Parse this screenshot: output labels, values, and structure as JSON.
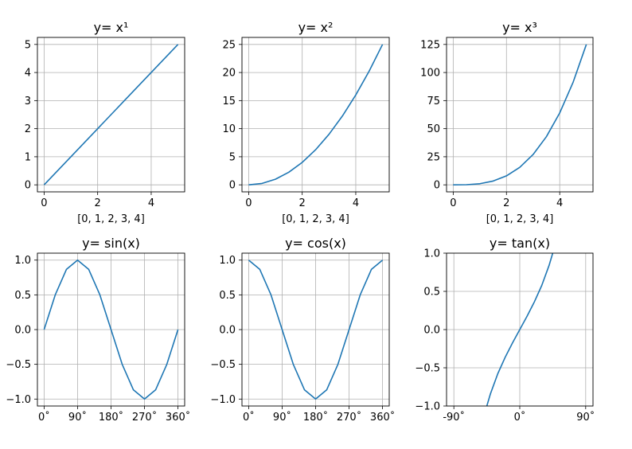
{
  "line_color": "#1f77b4",
  "grid_color": "#b0b0b0",
  "chart_data": [
    {
      "type": "line",
      "title": "y= x¹",
      "xlabel": "[0, 1, 2, 3, 4]",
      "ylabel": "",
      "xlim": [
        -0.25,
        5.25
      ],
      "ylim": [
        -0.25,
        5.25
      ],
      "xticks": [
        0,
        2,
        4
      ],
      "xtick_labels": [
        "0",
        "2",
        "4"
      ],
      "yticks": [
        0,
        1,
        2,
        3,
        4,
        5
      ],
      "ytick_labels": [
        "0",
        "1",
        "2",
        "3",
        "4",
        "5"
      ],
      "grid": true,
      "series": [
        {
          "x": [
            0,
            0.5,
            1,
            1.5,
            2,
            2.5,
            3,
            3.5,
            4,
            4.5,
            5
          ],
          "y": [
            0,
            0.5,
            1,
            1.5,
            2,
            2.5,
            3,
            3.5,
            4,
            4.5,
            5
          ]
        }
      ]
    },
    {
      "type": "line",
      "title": "y= x²",
      "xlabel": "[0, 1, 2, 3, 4]",
      "ylabel": "",
      "xlim": [
        -0.25,
        5.25
      ],
      "ylim": [
        -1.25,
        26.25
      ],
      "xticks": [
        0,
        2,
        4
      ],
      "xtick_labels": [
        "0",
        "2",
        "4"
      ],
      "yticks": [
        0,
        5,
        10,
        15,
        20,
        25
      ],
      "ytick_labels": [
        "0",
        "5",
        "10",
        "15",
        "20",
        "25"
      ],
      "grid": true,
      "series": [
        {
          "x": [
            0,
            0.5,
            1,
            1.5,
            2,
            2.5,
            3,
            3.5,
            4,
            4.5,
            5
          ],
          "y": [
            0,
            0.25,
            1,
            2.25,
            4,
            6.25,
            9,
            12.25,
            16,
            20.25,
            25
          ]
        }
      ]
    },
    {
      "type": "line",
      "title": "y= x³",
      "xlabel": "[0, 1, 2, 3, 4]",
      "ylabel": "",
      "xlim": [
        -0.25,
        5.25
      ],
      "ylim": [
        -6.25,
        131.25
      ],
      "xticks": [
        0,
        2,
        4
      ],
      "xtick_labels": [
        "0",
        "2",
        "4"
      ],
      "yticks": [
        0,
        25,
        50,
        75,
        100,
        125
      ],
      "ytick_labels": [
        "0",
        "25",
        "50",
        "75",
        "100",
        "125"
      ],
      "grid": true,
      "series": [
        {
          "x": [
            0,
            0.5,
            1,
            1.5,
            2,
            2.5,
            3,
            3.5,
            4,
            4.5,
            5
          ],
          "y": [
            0,
            0.125,
            1,
            3.375,
            8,
            15.625,
            27,
            42.875,
            64,
            91.125,
            125
          ]
        }
      ]
    },
    {
      "type": "line",
      "title": "y= sin(x)",
      "xlabel": "",
      "ylabel": "",
      "xlim": [
        -18,
        378
      ],
      "ylim": [
        -1.1,
        1.1
      ],
      "xticks": [
        0,
        90,
        180,
        270,
        360
      ],
      "xtick_labels": [
        "0˚",
        "90˚",
        "180˚",
        "270˚",
        "360˚"
      ],
      "yticks": [
        -1.0,
        -0.5,
        0.0,
        0.5,
        1.0
      ],
      "ytick_labels": [
        "−1.0",
        "−0.5",
        "0.0",
        "0.5",
        "1.0"
      ],
      "grid": true,
      "series": [
        {
          "x": [
            0,
            30,
            60,
            90,
            120,
            150,
            180,
            210,
            240,
            270,
            300,
            330,
            360
          ],
          "y": [
            0,
            0.5,
            0.866,
            1,
            0.866,
            0.5,
            0,
            -0.5,
            -0.866,
            -1,
            -0.866,
            -0.5,
            0
          ]
        }
      ]
    },
    {
      "type": "line",
      "title": "y= cos(x)",
      "xlabel": "",
      "ylabel": "",
      "xlim": [
        -18,
        378
      ],
      "ylim": [
        -1.1,
        1.1
      ],
      "xticks": [
        0,
        90,
        180,
        270,
        360
      ],
      "xtick_labels": [
        "0˚",
        "90˚",
        "180˚",
        "270˚",
        "360˚"
      ],
      "yticks": [
        -1.0,
        -0.5,
        0.0,
        0.5,
        1.0
      ],
      "ytick_labels": [
        "−1.0",
        "−0.5",
        "0.0",
        "0.5",
        "1.0"
      ],
      "grid": true,
      "series": [
        {
          "x": [
            0,
            30,
            60,
            90,
            120,
            150,
            180,
            210,
            240,
            270,
            300,
            330,
            360
          ],
          "y": [
            1,
            0.866,
            0.5,
            0,
            -0.5,
            -0.866,
            -1,
            -0.866,
            -0.5,
            0,
            0.5,
            0.866,
            1
          ]
        }
      ]
    },
    {
      "type": "line",
      "title": "y= tan(x)",
      "xlabel": "",
      "ylabel": "",
      "xlim": [
        -100,
        100
      ],
      "ylim": [
        -1.0,
        1.0
      ],
      "xticks": [
        -90,
        0,
        90
      ],
      "xtick_labels": [
        "-90˚",
        "0˚",
        "90˚"
      ],
      "yticks": [
        -1.0,
        -0.5,
        0.0,
        0.5,
        1.0
      ],
      "ytick_labels": [
        "−1.0",
        "−0.5",
        "0.0",
        "0.5",
        "1.0"
      ],
      "grid": true,
      "series": [
        {
          "x": [
            -45,
            -40,
            -30,
            -20,
            -10,
            0,
            10,
            20,
            30,
            40,
            45
          ],
          "y": [
            -1,
            -0.839,
            -0.577,
            -0.364,
            -0.176,
            0,
            0.176,
            0.364,
            0.577,
            0.839,
            1
          ]
        }
      ]
    }
  ]
}
